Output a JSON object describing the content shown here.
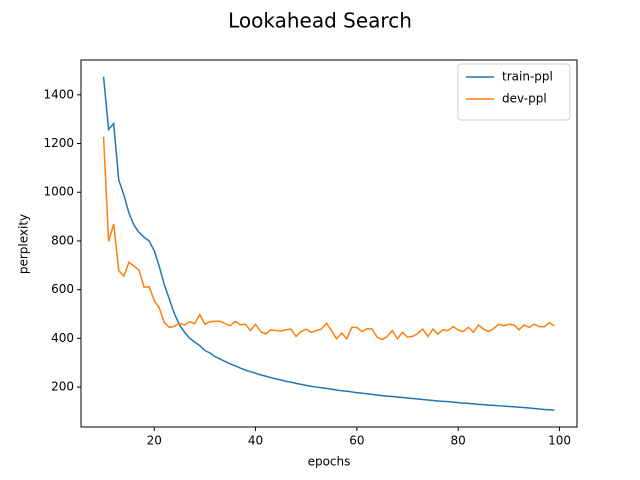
{
  "chart_data": {
    "type": "line",
    "title": "Lookahead Search",
    "xlabel": "epochs",
    "ylabel": "perplexity",
    "x": [
      10,
      11,
      12,
      13,
      14,
      15,
      16,
      17,
      18,
      19,
      20,
      21,
      22,
      23,
      24,
      25,
      26,
      27,
      28,
      29,
      30,
      31,
      32,
      33,
      34,
      35,
      36,
      37,
      38,
      39,
      40,
      41,
      42,
      43,
      44,
      45,
      46,
      47,
      48,
      49,
      50,
      51,
      52,
      53,
      54,
      55,
      56,
      57,
      58,
      59,
      60,
      61,
      62,
      63,
      64,
      65,
      66,
      67,
      68,
      69,
      70,
      71,
      72,
      73,
      74,
      75,
      76,
      77,
      78,
      79,
      80,
      81,
      82,
      83,
      84,
      85,
      86,
      87,
      88,
      89,
      90,
      91,
      92,
      93,
      94,
      95,
      96,
      97,
      98,
      99
    ],
    "series": [
      {
        "name": "train-ppl",
        "color": "#1f77b4",
        "values": [
          1475,
          1258,
          1282,
          1050,
          990,
          915,
          865,
          835,
          815,
          800,
          760,
          695,
          620,
          560,
          500,
          455,
          425,
          400,
          385,
          370,
          350,
          340,
          325,
          315,
          305,
          295,
          287,
          278,
          270,
          263,
          257,
          250,
          245,
          239,
          234,
          229,
          224,
          220,
          215,
          211,
          207,
          203,
          200,
          197,
          194,
          191,
          188,
          185,
          183,
          180,
          177,
          175,
          172,
          170,
          167,
          165,
          163,
          161,
          159,
          157,
          155,
          153,
          151,
          149,
          147,
          145,
          143,
          141,
          140,
          138,
          136,
          134,
          133,
          131,
          129,
          128,
          126,
          125,
          123,
          122,
          120,
          119,
          117,
          116,
          114,
          112,
          110,
          108,
          107,
          105
        ]
      },
      {
        "name": "dev-ppl",
        "color": "#ff7f0e",
        "values": [
          1228,
          798,
          870,
          678,
          655,
          712,
          697,
          680,
          610,
          612,
          555,
          525,
          465,
          445,
          450,
          462,
          455,
          468,
          460,
          498,
          458,
          468,
          470,
          470,
          460,
          452,
          470,
          456,
          458,
          432,
          458,
          428,
          418,
          435,
          432,
          430,
          435,
          438,
          408,
          428,
          438,
          425,
          432,
          438,
          462,
          432,
          398,
          422,
          398,
          445,
          445,
          428,
          440,
          438,
          405,
          395,
          408,
          432,
          398,
          425,
          405,
          408,
          420,
          438,
          408,
          438,
          418,
          435,
          432,
          448,
          435,
          428,
          445,
          425,
          455,
          438,
          428,
          440,
          458,
          452,
          458,
          455,
          435,
          455,
          445,
          458,
          448,
          448,
          465,
          450
        ]
      }
    ],
    "xlim": [
      5.55,
      103.45
    ],
    "ylim": [
      36,
      1543
    ],
    "xticks": [
      20,
      40,
      60,
      80,
      100
    ],
    "yticks": [
      200,
      400,
      600,
      800,
      1000,
      1200,
      1400
    ],
    "legend": "upper right"
  }
}
